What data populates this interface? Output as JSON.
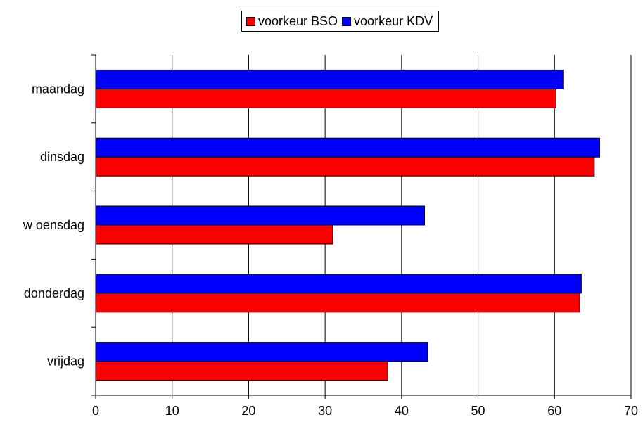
{
  "chart_data": {
    "type": "bar",
    "orientation": "horizontal",
    "categories": [
      "maandag",
      "dinsdag",
      "w oensdag",
      "donderdag",
      "vrijdag"
    ],
    "series": [
      {
        "name": "voorkeur BSO",
        "color": "#ff0000",
        "values": [
          60.2,
          65.2,
          31.0,
          63.3,
          38.2
        ]
      },
      {
        "name": "voorkeur KDV",
        "color": "#0000ff",
        "values": [
          61.1,
          65.9,
          43.0,
          63.5,
          43.4
        ]
      }
    ],
    "xlim": [
      0,
      70
    ],
    "xticks": [
      0,
      10,
      20,
      30,
      40,
      50,
      60,
      70
    ],
    "grid": true,
    "legend_position": "top-center"
  }
}
